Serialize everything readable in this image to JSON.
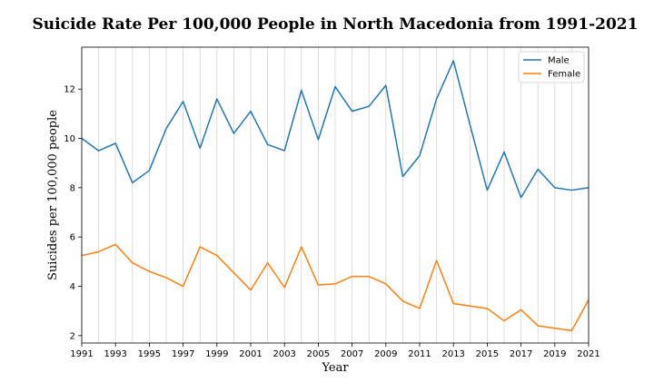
{
  "chart_data": {
    "type": "line",
    "title": "Suicide Rate Per 100,000 People in North Macedonia from 1991-2021",
    "xlabel": "Year",
    "ylabel": "Suicides per 100,000 people",
    "xlim": [
      1991,
      2021
    ],
    "ylim": [
      1.7,
      13.7
    ],
    "x": [
      1991,
      1992,
      1993,
      1994,
      1995,
      1996,
      1997,
      1998,
      1999,
      2000,
      2001,
      2002,
      2003,
      2004,
      2005,
      2006,
      2007,
      2008,
      2009,
      2010,
      2011,
      2012,
      2013,
      2014,
      2015,
      2016,
      2017,
      2018,
      2019,
      2020,
      2021
    ],
    "xticks": [
      1991,
      1993,
      1995,
      1997,
      1999,
      2001,
      2003,
      2005,
      2007,
      2009,
      2011,
      2013,
      2015,
      2017,
      2019,
      2021
    ],
    "yticks": [
      2,
      4,
      6,
      8,
      10,
      12
    ],
    "grid": "vertical",
    "legend_position": "top-right",
    "series": [
      {
        "name": "Male",
        "color": "#1f77b4",
        "values": [
          10.0,
          9.5,
          9.8,
          8.2,
          8.7,
          10.4,
          11.5,
          9.6,
          11.6,
          10.2,
          11.1,
          9.75,
          9.5,
          11.95,
          9.95,
          12.1,
          11.1,
          11.3,
          12.15,
          8.45,
          9.3,
          11.6,
          13.15,
          10.5,
          7.9,
          9.45,
          7.6,
          8.75,
          8.0,
          7.9,
          8.0
        ]
      },
      {
        "name": "Female",
        "color": "#ff7f0e",
        "values": [
          5.25,
          5.4,
          5.7,
          4.95,
          4.6,
          4.35,
          4.0,
          5.6,
          5.25,
          4.55,
          3.85,
          4.95,
          3.95,
          5.6,
          4.05,
          4.1,
          4.4,
          4.4,
          4.1,
          3.4,
          3.1,
          5.05,
          3.3,
          3.2,
          3.1,
          2.6,
          3.05,
          2.4,
          2.3,
          2.2,
          3.45
        ]
      }
    ]
  }
}
